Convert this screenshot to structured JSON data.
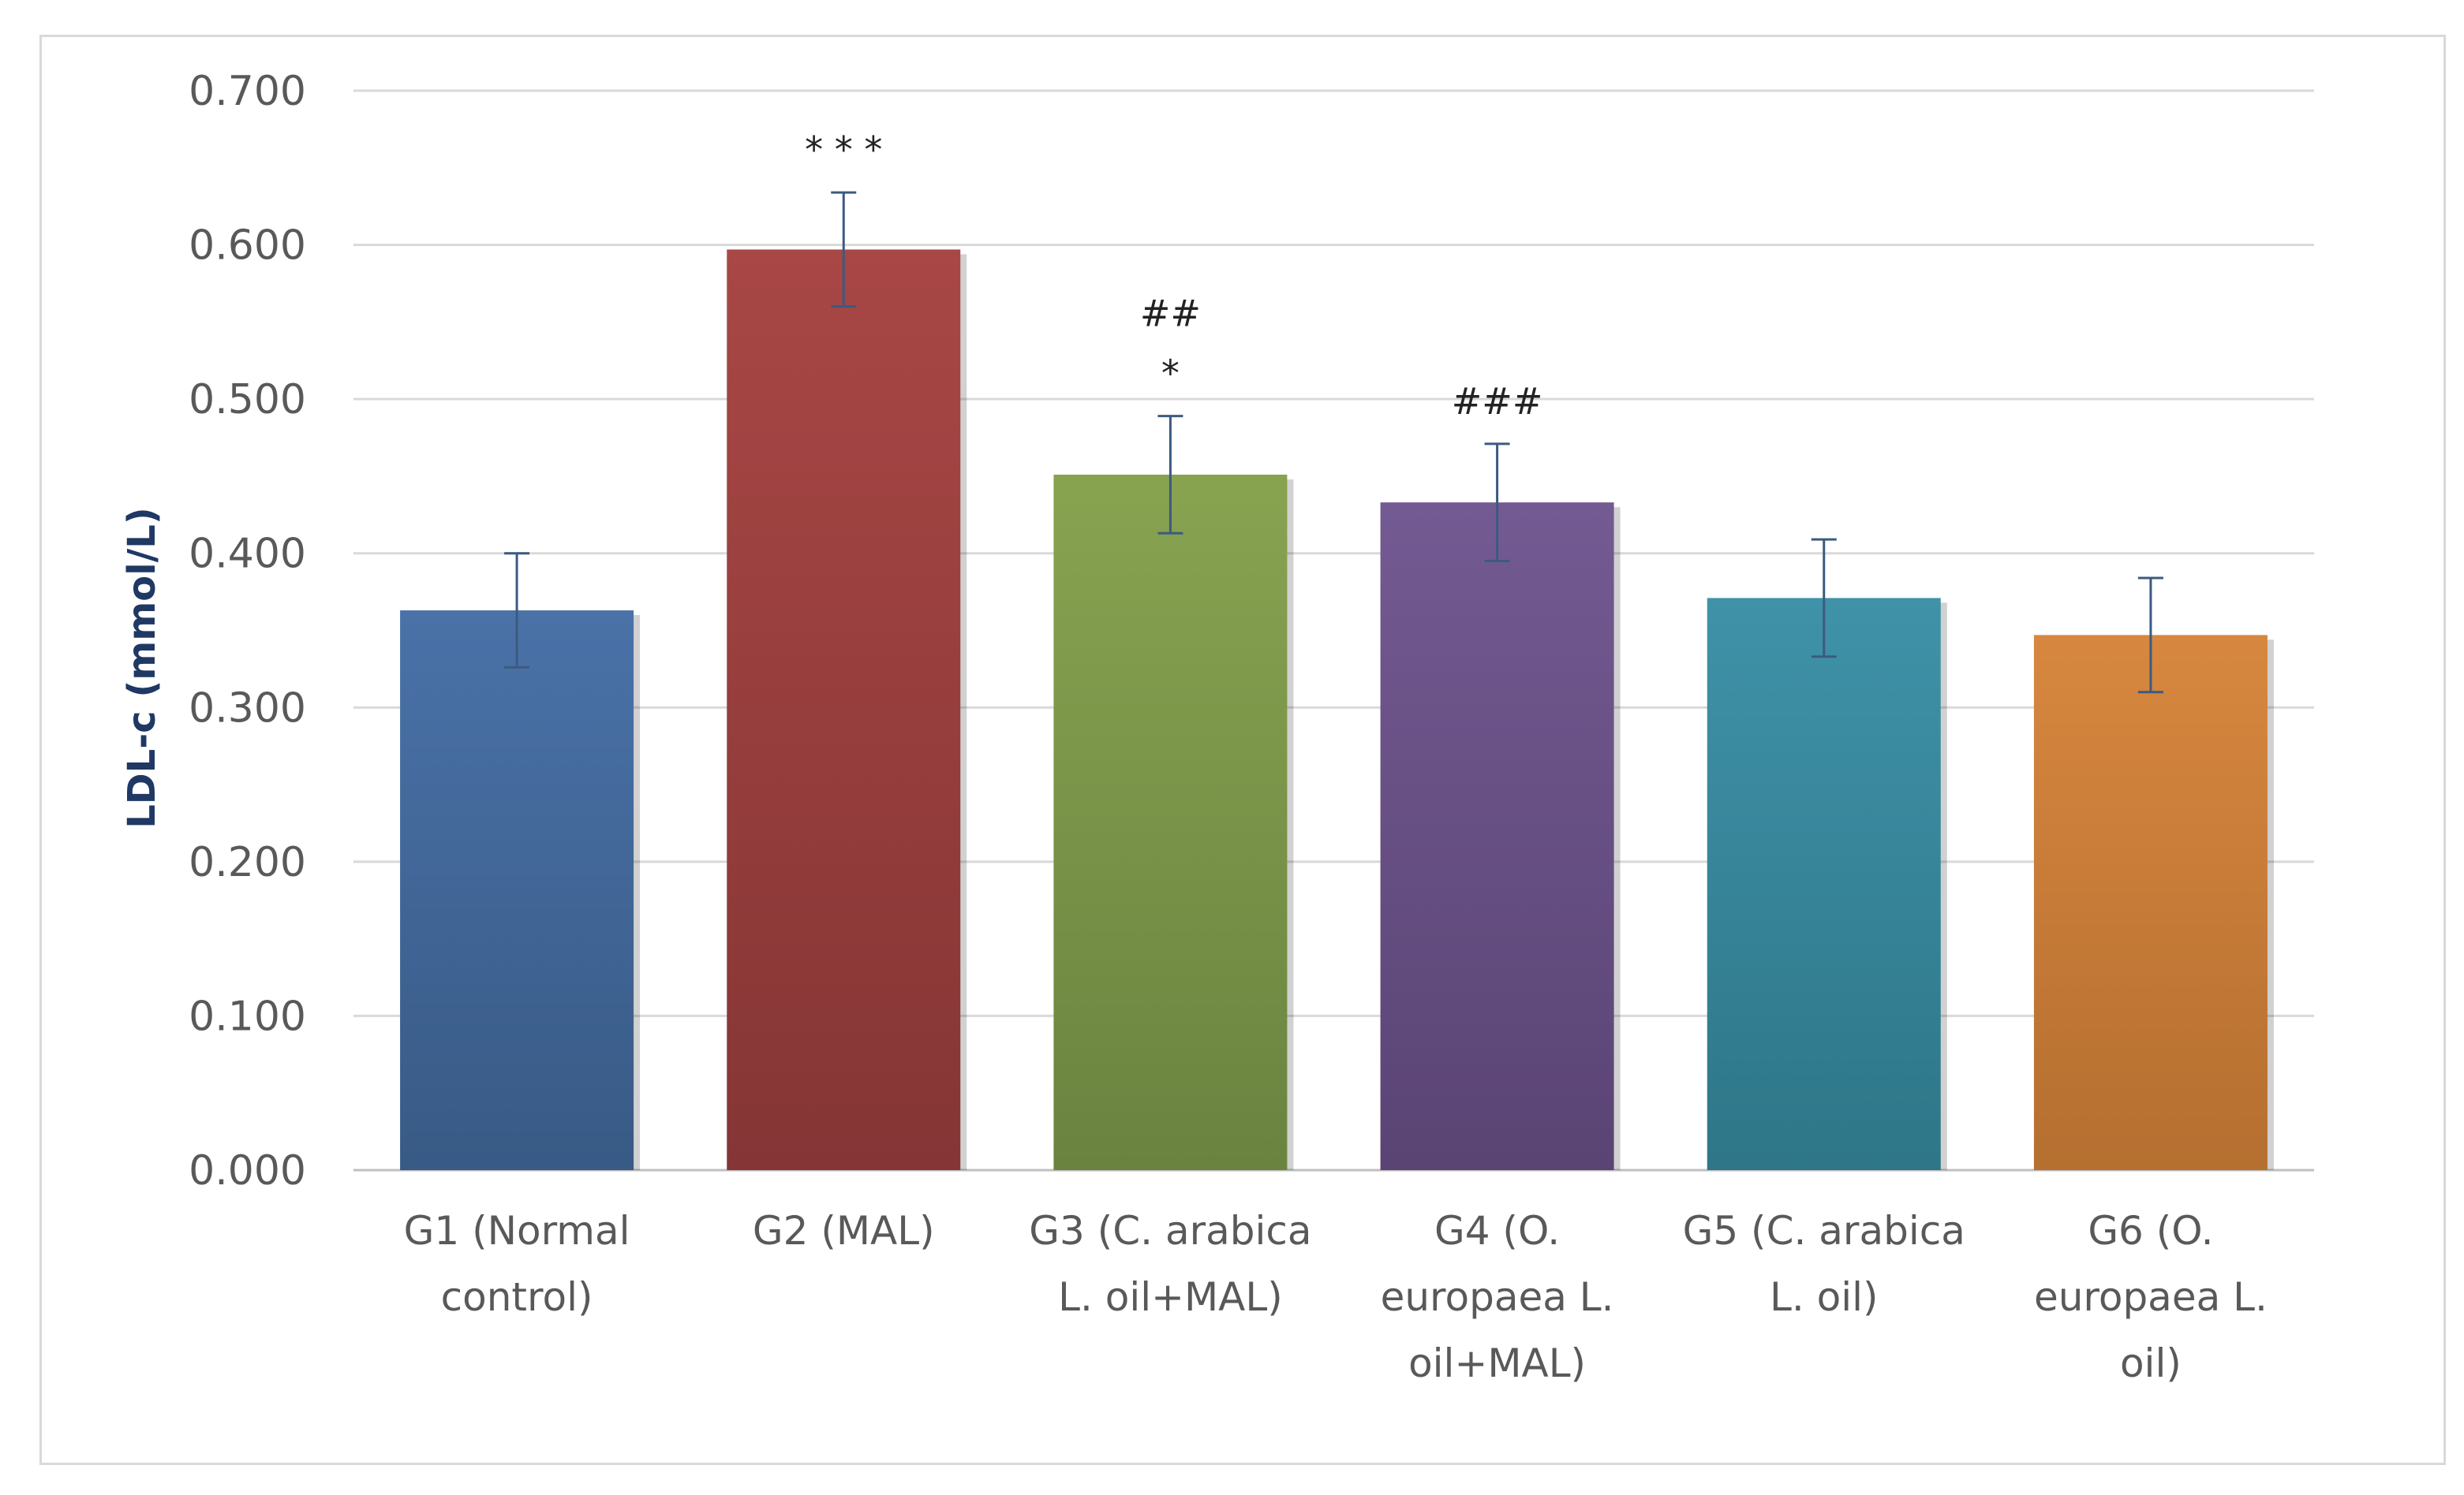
{
  "chart_data": {
    "type": "bar",
    "title": "",
    "xlabel": "",
    "ylabel": "LDL-c (mmol/L)",
    "ylim": [
      0,
      0.7
    ],
    "yticks": [
      0.0,
      0.1,
      0.2,
      0.3,
      0.4,
      0.5,
      0.6,
      0.7
    ],
    "ytick_labels": [
      "0.000",
      "0.100",
      "0.200",
      "0.300",
      "0.400",
      "0.500",
      "0.600",
      "0.700"
    ],
    "grid": true,
    "categories": [
      [
        "G1 (Normal",
        "control)"
      ],
      [
        "G2 (MAL)"
      ],
      [
        "G3 (C. arabica",
        "L. oil+MAL)"
      ],
      [
        "G4 (O.",
        "europaea L.",
        "oil+MAL)"
      ],
      [
        "G5 (C. arabica",
        "L. oil)"
      ],
      [
        "G6 (O.",
        "europaea L.",
        "oil)"
      ]
    ],
    "values": [
      0.363,
      0.597,
      0.451,
      0.433,
      0.371,
      0.347
    ],
    "errors": [
      0.037,
      0.037,
      0.038,
      0.038,
      0.038,
      0.037
    ],
    "significance": [
      [],
      [
        "* * *"
      ],
      [
        "##",
        "*"
      ],
      [
        "###"
      ],
      [],
      []
    ],
    "colors": [
      "#4a72a8",
      "#a84745",
      "#88a350",
      "#735a92",
      "#3f92a8",
      "#d7873f"
    ],
    "colors_dark": [
      "#385a85",
      "#853535",
      "#6a8440",
      "#5a4474",
      "#2e7688",
      "#b56f30"
    ]
  }
}
